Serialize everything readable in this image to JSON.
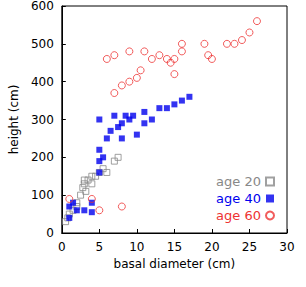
{
  "chart_data": {
    "type": "scatter",
    "x_label": "basal diameter (cm)",
    "y_label": "height (cm)",
    "xlim": [
      0,
      30
    ],
    "xticks": [
      0,
      5,
      10,
      15,
      20,
      25,
      30
    ],
    "ylim": [
      0,
      600
    ],
    "yticks": [
      0,
      100,
      200,
      300,
      400,
      500,
      600
    ],
    "grid": false,
    "legend": "lower right",
    "series": [
      {
        "name": "age 20",
        "color": "#888888",
        "marker": "square-open",
        "x": [
          0.5,
          0.8,
          1,
          1.5,
          2,
          2,
          2.5,
          2.8,
          3,
          3,
          3.2,
          3.5,
          4,
          4,
          4.5,
          5,
          5.5,
          6,
          7,
          7.5
        ],
        "values": [
          30,
          40,
          50,
          60,
          70,
          80,
          100,
          120,
          130,
          140,
          110,
          140,
          150,
          130,
          150,
          160,
          170,
          160,
          190,
          200
        ]
      },
      {
        "name": "age 40",
        "color": "#0000ee",
        "marker": "square",
        "x": [
          1,
          1,
          1.5,
          2,
          3,
          4,
          4,
          5,
          5,
          5,
          5,
          5.5,
          6,
          6.5,
          7,
          7.5,
          8,
          8,
          8.5,
          9,
          9.5,
          10,
          11,
          11,
          12,
          13,
          14,
          15,
          16,
          17
        ],
        "values": [
          40,
          70,
          80,
          60,
          60,
          55,
          80,
          160,
          190,
          220,
          300,
          200,
          250,
          270,
          310,
          280,
          290,
          250,
          310,
          300,
          310,
          260,
          290,
          320,
          300,
          330,
          330,
          340,
          350,
          360
        ]
      },
      {
        "name": "age 60",
        "color": "#ee3333",
        "marker": "circle-open",
        "x": [
          1,
          4,
          5,
          8,
          6,
          7,
          7,
          8,
          9,
          9,
          10,
          10.5,
          11,
          12,
          13,
          14,
          14.5,
          15,
          15,
          16,
          16,
          19,
          19.5,
          20,
          22,
          23,
          24,
          25,
          26
        ],
        "values": [
          90,
          90,
          60,
          70,
          460,
          470,
          370,
          390,
          480,
          400,
          410,
          430,
          480,
          460,
          470,
          460,
          450,
          460,
          420,
          500,
          480,
          500,
          470,
          460,
          500,
          500,
          510,
          530,
          560
        ]
      }
    ]
  }
}
